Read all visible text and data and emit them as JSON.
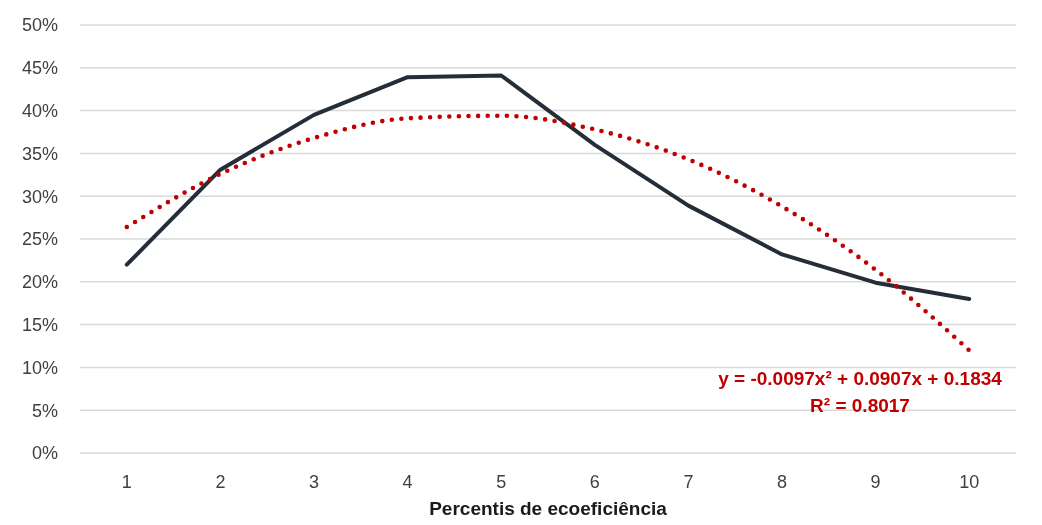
{
  "chart_data": {
    "type": "line",
    "xlabel": "Percentis de ecoeficiência",
    "x": [
      1,
      2,
      3,
      4,
      5,
      6,
      7,
      8,
      9,
      10
    ],
    "xlim": [
      0.5,
      10.5
    ],
    "xticks": [
      1,
      2,
      3,
      4,
      5,
      6,
      7,
      8,
      9,
      10
    ],
    "ylim": [
      0,
      50
    ],
    "yticks": [
      {
        "value": 0,
        "label": "0%"
      },
      {
        "value": 5,
        "label": "5%"
      },
      {
        "value": 10,
        "label": "10%"
      },
      {
        "value": 15,
        "label": "15%"
      },
      {
        "value": 20,
        "label": "20%"
      },
      {
        "value": 25,
        "label": "25%"
      },
      {
        "value": 30,
        "label": "30%"
      },
      {
        "value": 35,
        "label": "35%"
      },
      {
        "value": 40,
        "label": "40%"
      },
      {
        "value": 45,
        "label": "45%"
      },
      {
        "value": 50,
        "label": "50%"
      }
    ],
    "series": [
      {
        "color": "#252d38",
        "values": [
          22.0,
          33.1,
          39.5,
          43.9,
          44.1,
          36.0,
          28.9,
          23.2,
          19.9,
          18.0
        ],
        "line_style": "solid"
      },
      {
        "type": "line",
        "color": "#c00000",
        "x": [
          1,
          2,
          3,
          4,
          5,
          6,
          7,
          8,
          9,
          10
        ],
        "values": [
          26.4,
          32.6,
          36.8,
          39.1,
          39.4,
          37.8,
          34.3,
          28.8,
          21.4,
          12.0
        ],
        "line_style": "dotted"
      }
    ],
    "annotations": [
      "y = -0.0097x² + 0.0907x + 0.1834",
      "R² = 0.8017"
    ],
    "grid": "y",
    "marker": "none"
  }
}
